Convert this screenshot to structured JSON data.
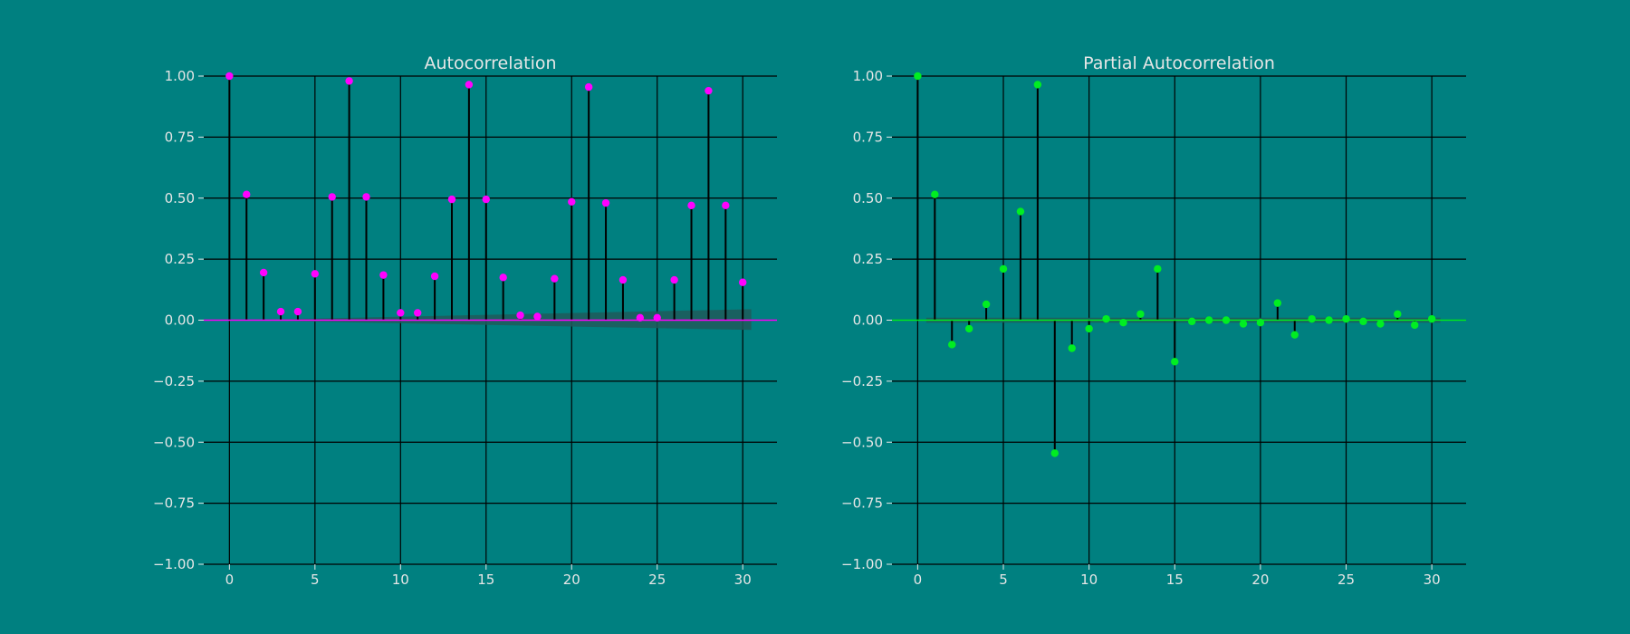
{
  "colors": {
    "background": "#008080",
    "grid": "#000000",
    "text": "#e6e6e6",
    "stem": "#000000",
    "acf_marker": "#ff00ff",
    "pacf_marker": "#00ee22",
    "confidence_band": "#1f5a5a"
  },
  "chart_data": [
    {
      "type": "stem",
      "title": "Autocorrelation",
      "xlabel": "",
      "ylabel": "",
      "xlim": [
        -1.5,
        32
      ],
      "ylim": [
        -1.0,
        1.0
      ],
      "xticks": [
        0,
        5,
        10,
        15,
        20,
        25,
        30
      ],
      "yticks": [
        1.0,
        0.75,
        0.5,
        0.25,
        0.0,
        -0.25,
        -0.5,
        -0.75,
        -1.0
      ],
      "ytick_labels": [
        "1.00",
        "0.75",
        "0.50",
        "0.25",
        "0.00",
        "−0.25",
        "−0.50",
        "−0.75",
        "−1.00"
      ],
      "grid": true,
      "marker_color_key": "acf_marker",
      "x": [
        0,
        1,
        2,
        3,
        4,
        5,
        6,
        7,
        8,
        9,
        10,
        11,
        12,
        13,
        14,
        15,
        16,
        17,
        18,
        19,
        20,
        21,
        22,
        23,
        24,
        25,
        26,
        27,
        28,
        29,
        30
      ],
      "values": [
        1.0,
        0.515,
        0.195,
        0.035,
        0.035,
        0.19,
        0.505,
        0.98,
        0.505,
        0.185,
        0.03,
        0.03,
        0.18,
        0.495,
        0.965,
        0.495,
        0.175,
        0.02,
        0.015,
        0.17,
        0.485,
        0.955,
        0.48,
        0.165,
        0.01,
        0.01,
        0.165,
        0.47,
        0.94,
        0.47,
        0.155
      ],
      "confidence_band": {
        "x": [
          0.5,
          30.5
        ],
        "upper": [
          0.0,
          0.045
        ],
        "lower": [
          0.0,
          -0.04
        ]
      }
    },
    {
      "type": "stem",
      "title": "Partial Autocorrelation",
      "xlabel": "",
      "ylabel": "",
      "xlim": [
        -1.5,
        32
      ],
      "ylim": [
        -1.0,
        1.0
      ],
      "xticks": [
        0,
        5,
        10,
        15,
        20,
        25,
        30
      ],
      "yticks": [
        1.0,
        0.75,
        0.5,
        0.25,
        0.0,
        -0.25,
        -0.5,
        -0.75,
        -1.0
      ],
      "ytick_labels": [
        "1.00",
        "0.75",
        "0.50",
        "0.25",
        "0.00",
        "−0.25",
        "−0.50",
        "−0.75",
        "−1.00"
      ],
      "grid": true,
      "marker_color_key": "pacf_marker",
      "x": [
        0,
        1,
        2,
        3,
        4,
        5,
        6,
        7,
        8,
        9,
        10,
        11,
        12,
        13,
        14,
        15,
        16,
        17,
        18,
        19,
        20,
        21,
        22,
        23,
        24,
        25,
        26,
        27,
        28,
        29,
        30
      ],
      "values": [
        1.0,
        0.515,
        -0.1,
        -0.035,
        0.065,
        0.21,
        0.445,
        0.965,
        -0.545,
        -0.115,
        -0.035,
        0.005,
        -0.01,
        0.025,
        0.21,
        -0.17,
        -0.005,
        0.0,
        0.0,
        -0.015,
        -0.01,
        0.07,
        -0.06,
        0.005,
        0.0,
        0.005,
        -0.005,
        -0.015,
        0.025,
        -0.02,
        0.005
      ],
      "confidence_band": {
        "x": [
          0.5,
          30.5
        ],
        "upper": [
          0.01,
          0.01
        ],
        "lower": [
          -0.01,
          -0.01
        ]
      }
    }
  ]
}
